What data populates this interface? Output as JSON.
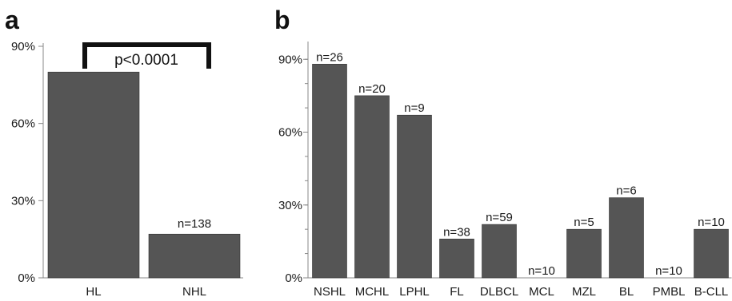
{
  "chart_data": [
    {
      "panel_label": "a",
      "type": "bar",
      "categories": [
        "HL",
        "NHL"
      ],
      "values": [
        80,
        17
      ],
      "data_labels": [
        "",
        "n=138"
      ],
      "yticks": [
        "0%",
        "30%",
        "60%",
        "90%"
      ],
      "ytick_values": [
        0,
        30,
        60,
        90
      ],
      "ylim": [
        0,
        90
      ],
      "annotation": "p<0.0001",
      "bar_color": "#555555",
      "title": "",
      "xlabel": "",
      "ylabel": ""
    },
    {
      "panel_label": "b",
      "type": "bar",
      "categories": [
        "NSHL",
        "MCHL",
        "LPHL",
        "FL",
        "DLBCL",
        "MCL",
        "MZL",
        "BL",
        "PMBL",
        "B-CLL"
      ],
      "values": [
        88,
        75,
        67,
        16,
        22,
        0,
        20,
        33,
        0,
        20
      ],
      "data_labels": [
        "n=26",
        "n=20",
        "n=9",
        "n=38",
        "n=59",
        "n=10",
        "n=5",
        "n=6",
        "n=10",
        "n=10"
      ],
      "yticks": [
        "0%",
        "30%",
        "60%",
        "90%"
      ],
      "ytick_values": [
        0,
        30,
        60,
        90
      ],
      "ylim": [
        0,
        96
      ],
      "bar_color": "#555555",
      "title": "",
      "xlabel": "",
      "ylabel": ""
    }
  ]
}
